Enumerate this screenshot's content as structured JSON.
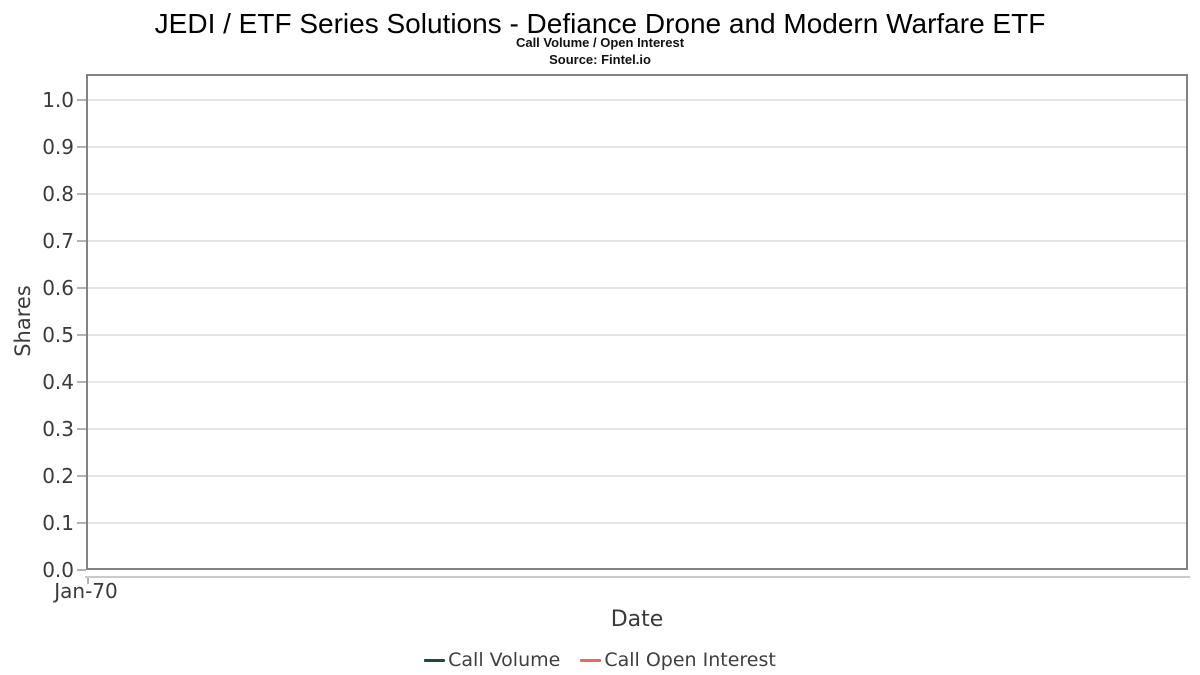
{
  "chart_data": {
    "type": "line",
    "title": "JEDI / ETF Series Solutions - Defiance Drone and Modern Warfare ETF",
    "subtitle": "Call Volume / Open Interest",
    "source": "Source: Fintel.io",
    "xlabel": "Date",
    "ylabel": "Shares",
    "x_ticks": [
      "Jan-70"
    ],
    "y_ticks": [
      "0.0",
      "0.1",
      "0.2",
      "0.3",
      "0.4",
      "0.5",
      "0.6",
      "0.7",
      "0.8",
      "0.9",
      "1.0"
    ],
    "ylim": [
      0.0,
      1.055
    ],
    "grid": true,
    "legend_position": "bottom",
    "series": [
      {
        "name": "Call Volume",
        "color": "#1f4d33",
        "x": [],
        "values": []
      },
      {
        "name": "Call Open Interest",
        "color": "#f8615d",
        "x": [],
        "values": []
      }
    ]
  },
  "colors": {
    "title_text": "#000000",
    "axis_text": "#3a3a3a",
    "plot_border": "#828282",
    "gridline": "#e6e6e6",
    "axis_line": "#c9c9c9",
    "tick_mark": "#b3b3b3"
  }
}
